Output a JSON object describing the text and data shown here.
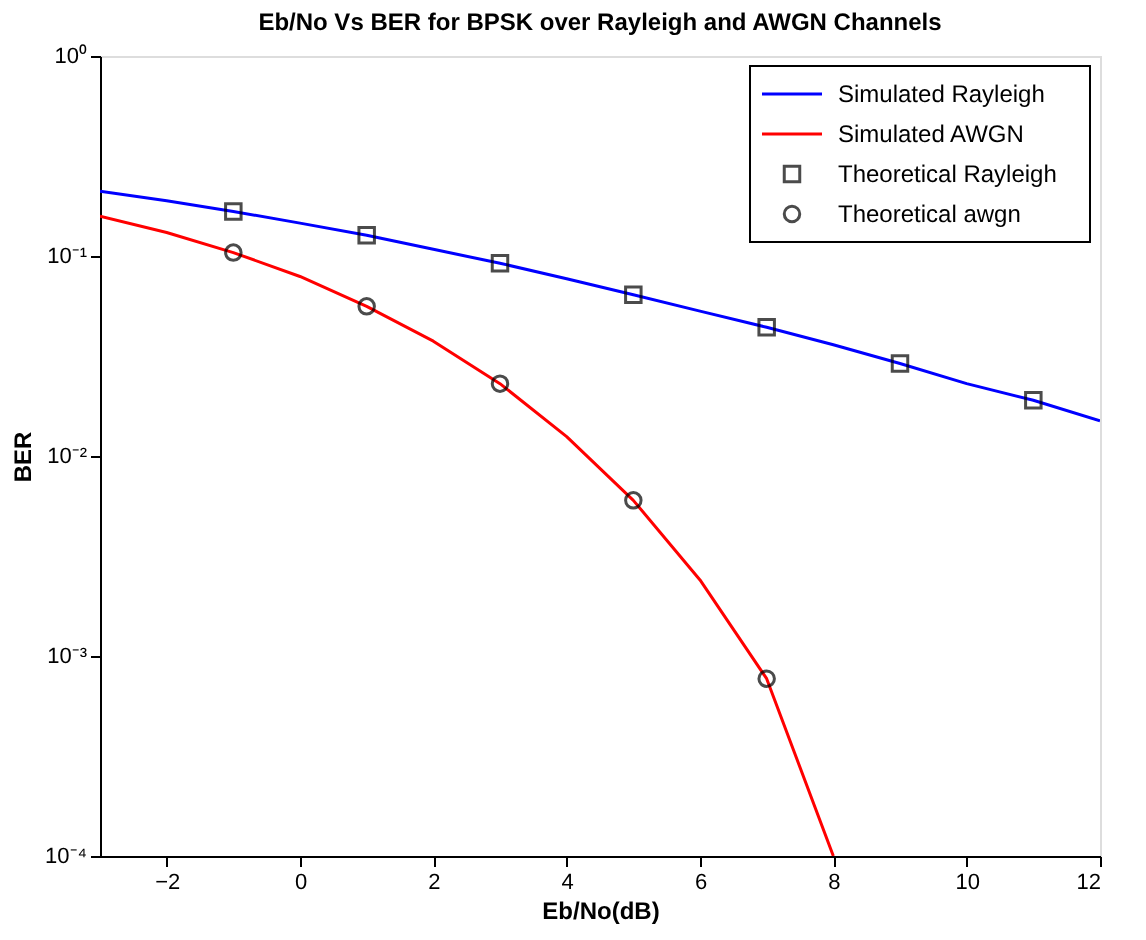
{
  "chart_data": {
    "type": "line",
    "title": "Eb/No Vs BER for BPSK over Rayleigh and AWGN Channels",
    "xlabel": "Eb/No(dB)",
    "ylabel": "BER",
    "xlim": [
      -3,
      12
    ],
    "xticks": [
      -2,
      0,
      2,
      4,
      6,
      8,
      10,
      12
    ],
    "ylim": [
      0.0001,
      1
    ],
    "yticks": [
      {
        "value": 0.0001,
        "label": "10⁻⁴"
      },
      {
        "value": 0.001,
        "label": "10⁻³"
      },
      {
        "value": 0.01,
        "label": "10⁻²"
      },
      {
        "value": 0.1,
        "label": "10⁻¹"
      },
      {
        "value": 1,
        "label": "10⁰"
      }
    ],
    "log": "y",
    "grid": false,
    "line_style": "solid",
    "legend": "top right",
    "series": [
      {
        "name": "Simulated Rayleigh",
        "color": "#0000ff",
        "marker": "none",
        "x": [
          -3,
          -2,
          -1,
          0,
          1,
          2,
          3,
          4,
          5,
          6,
          7,
          8,
          9,
          10,
          11,
          12
        ],
        "values": [
          0.211,
          0.189,
          0.167,
          0.146,
          0.127,
          0.108,
          0.092,
          0.077,
          0.064,
          0.053,
          0.044,
          0.036,
          0.029,
          0.023,
          0.019,
          0.015
        ]
      },
      {
        "name": "Simulated AWGN",
        "color": "#ff0000",
        "marker": "none",
        "x": [
          -3,
          -2,
          -1,
          0,
          1,
          2,
          3,
          4,
          5,
          6,
          7,
          8
        ],
        "values": [
          0.158,
          0.131,
          0.104,
          0.079,
          0.056,
          0.0375,
          0.023,
          0.0125,
          0.006,
          0.0024,
          0.00077,
          0.0001
        ]
      },
      {
        "name": "Theoretical Rayleigh",
        "type": "scatter",
        "color": "#000000",
        "marker": "square",
        "x": [
          -1,
          1,
          3,
          5,
          7,
          9,
          11
        ],
        "values": [
          0.167,
          0.127,
          0.092,
          0.064,
          0.044,
          0.029,
          0.019
        ]
      },
      {
        "name": "Theoretical awgn",
        "type": "scatter",
        "color": "#000000",
        "marker": "circle",
        "x": [
          -1,
          1,
          3,
          5,
          7
        ],
        "values": [
          0.104,
          0.056,
          0.023,
          0.006,
          0.00077
        ]
      }
    ]
  }
}
